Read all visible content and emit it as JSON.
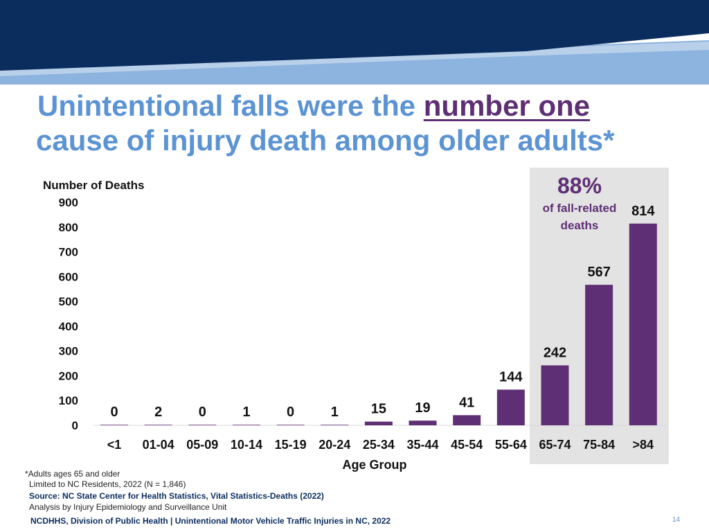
{
  "title": {
    "line1_prefix": "Unintentional falls were the ",
    "line1_emphasis": "number one",
    "line2": "cause of injury death among older adults*"
  },
  "colors": {
    "banner_dark": "#0b2d5e",
    "banner_light": "#8db3df",
    "title": "#5b93d3",
    "emphasis": "#5e2f74",
    "bar": "#5e2f74",
    "highlight_bg": "#e3e3e3"
  },
  "chart_data": {
    "type": "bar",
    "title": "",
    "ylabel": "Number of Deaths",
    "xlabel": "Age Group",
    "ylim": [
      0,
      900
    ],
    "yticks": [
      0,
      100,
      200,
      300,
      400,
      500,
      600,
      700,
      800,
      900
    ],
    "categories": [
      "<1",
      "01-04",
      "05-09",
      "10-14",
      "15-19",
      "20-24",
      "25-34",
      "35-44",
      "45-54",
      "55-64",
      "65-74",
      "75-84",
      ">84"
    ],
    "values": [
      0,
      2,
      0,
      1,
      0,
      1,
      15,
      19,
      41,
      144,
      242,
      567,
      814
    ],
    "data_labels": [
      "0",
      "2",
      "0",
      "1",
      "0",
      "1",
      "15",
      "19",
      "41",
      "144",
      "242",
      "567",
      "814"
    ],
    "highlight": {
      "categories": [
        "65-74",
        "75-84",
        ">84"
      ],
      "percent": "88%",
      "caption_line1": "of fall-related",
      "caption_line2": "deaths"
    }
  },
  "footnotes": {
    "note": "*Adults ages 65 and older",
    "residents": "Limited to NC Residents, 2022 (N = 1,846)",
    "source": "Source: NC State Center for Health Statistics, Vital Statistics-Deaths (2022)",
    "analysis": "Analysis by Injury Epidemiology and Surveillance Unit"
  },
  "footer": {
    "text": "NCDHHS, Division of Public Health | Unintentional Motor Vehicle Traffic Injuries in NC, 2022",
    "page_number": "14"
  }
}
